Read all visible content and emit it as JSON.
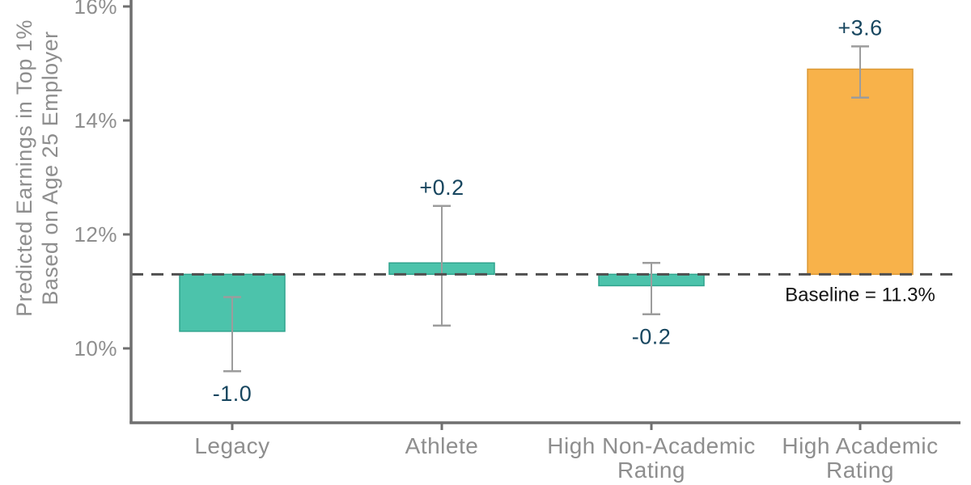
{
  "chart_data": {
    "type": "bar",
    "title": "",
    "xlabel": "",
    "ylabel": "Predicted Earnings in Top 1% Based on Age 25 Employer",
    "ylabel_lines": [
      "Predicted Earnings in Top 1%",
      "Based on Age 25 Employer"
    ],
    "ylim": [
      8.7,
      16.1
    ],
    "grid": false,
    "legend": false,
    "y_ticks": [
      {
        "value": 16,
        "label": "16%"
      },
      {
        "value": 14,
        "label": "14%"
      },
      {
        "value": 12,
        "label": "12%"
      },
      {
        "value": 10,
        "label": "10%"
      }
    ],
    "baseline": {
      "value": 11.3,
      "label": "Baseline = 11.3%"
    },
    "categories": [
      "Legacy",
      "Athlete",
      "High Non-Academic Rating",
      "High Academic Rating"
    ],
    "bars": [
      {
        "category": "Legacy",
        "category_lines": [
          "Legacy"
        ],
        "value": 10.3,
        "effect": -1.0,
        "effect_label": "-1.0",
        "ci_low": 9.6,
        "ci_high": 10.9,
        "color": "#4CC3AB",
        "edge_color": "#2FA38D",
        "label_side": "below"
      },
      {
        "category": "Athlete",
        "category_lines": [
          "Athlete"
        ],
        "value": 11.5,
        "effect": 0.2,
        "effect_label": "+0.2",
        "ci_low": 10.4,
        "ci_high": 12.5,
        "color": "#4CC3AB",
        "edge_color": "#2FA38D",
        "label_side": "above"
      },
      {
        "category": "High Non-Academic Rating",
        "category_lines": [
          "High Non-Academic",
          "Rating"
        ],
        "value": 11.1,
        "effect": -0.2,
        "effect_label": "-0.2",
        "ci_low": 10.6,
        "ci_high": 11.5,
        "color": "#4CC3AB",
        "edge_color": "#2FA38D",
        "label_side": "below"
      },
      {
        "category": "High Academic Rating",
        "category_lines": [
          "High Academic",
          "Rating"
        ],
        "value": 14.9,
        "effect": 3.6,
        "effect_label": "+3.6",
        "ci_low": 14.4,
        "ci_high": 15.3,
        "color": "#F8B24A",
        "edge_color": "#DC9A37",
        "label_side": "above"
      }
    ],
    "colors": {
      "axis": "#6F6F6F",
      "tick_label": "#8E8E8E",
      "category_label": "#8E8E8E",
      "value_label": "#17465F",
      "error_bar": "#9C9C9C",
      "baseline_line": "#4F4F4F",
      "baseline_text": "#141414",
      "background": "#FFFFFF"
    }
  }
}
